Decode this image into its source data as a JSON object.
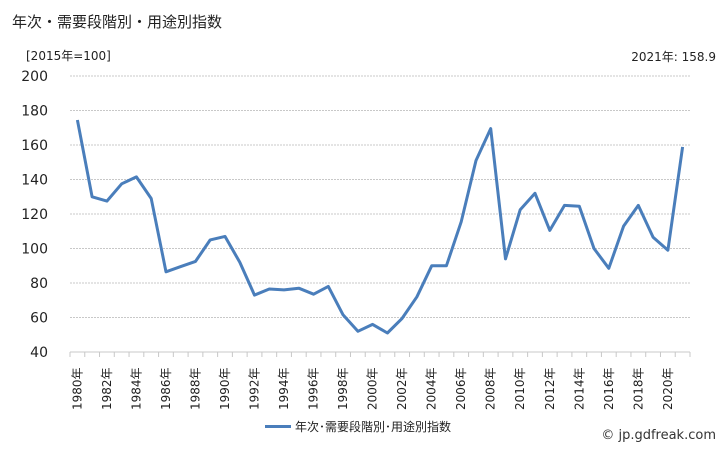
{
  "header": {
    "title": "年次・需要段階別・用途別指数",
    "unit_label": "[2015年=100]",
    "latest_label": "2021年: 158.9"
  },
  "legend": {
    "series_label": "年次･需要段階別･用途別指数"
  },
  "footer": {
    "watermark": "© jp.gdfreak.com"
  },
  "colors": {
    "line": "#4a7ebb",
    "grid": "#c8c8c8",
    "axis_text": "#222222"
  },
  "chart_data": {
    "type": "line",
    "title": "年次・需要段階別・用途別指数",
    "xlabel": "",
    "ylabel": "[2015年=100]",
    "ylim": [
      40,
      200
    ],
    "yticks": [
      40,
      60,
      80,
      100,
      120,
      140,
      160,
      180,
      200
    ],
    "grid": true,
    "legend_position": "bottom",
    "x_tick_labels": [
      "1980年",
      "1982年",
      "1984年",
      "1986年",
      "1988年",
      "1990年",
      "1992年",
      "1994年",
      "1996年",
      "1998年",
      "2000年",
      "2002年",
      "2004年",
      "2006年",
      "2008年",
      "2010年",
      "2012年",
      "2014年",
      "2016年",
      "2018年",
      "2020年"
    ],
    "annotation": "2021年: 158.9",
    "x": [
      1980,
      1981,
      1982,
      1983,
      1984,
      1985,
      1986,
      1987,
      1988,
      1989,
      1990,
      1991,
      1992,
      1993,
      1994,
      1995,
      1996,
      1997,
      1998,
      1999,
      2000,
      2001,
      2002,
      2003,
      2004,
      2005,
      2006,
      2007,
      2008,
      2009,
      2010,
      2011,
      2012,
      2013,
      2014,
      2015,
      2016,
      2017,
      2018,
      2019,
      2020,
      2021
    ],
    "series": [
      {
        "name": "年次･需要段階別･用途別指数",
        "values": [
          174.5,
          130,
          127.5,
          137.5,
          141.5,
          129,
          86.5,
          89.5,
          92.5,
          105,
          107,
          92,
          73,
          76.5,
          76,
          77,
          73.5,
          78,
          61.5,
          52,
          56,
          51,
          59.5,
          72,
          90,
          90,
          115.5,
          151,
          169.5,
          94,
          122.5,
          132,
          110.5,
          125,
          124.5,
          100,
          88.5,
          113,
          125,
          106.5,
          99,
          158.9
        ]
      }
    ]
  }
}
